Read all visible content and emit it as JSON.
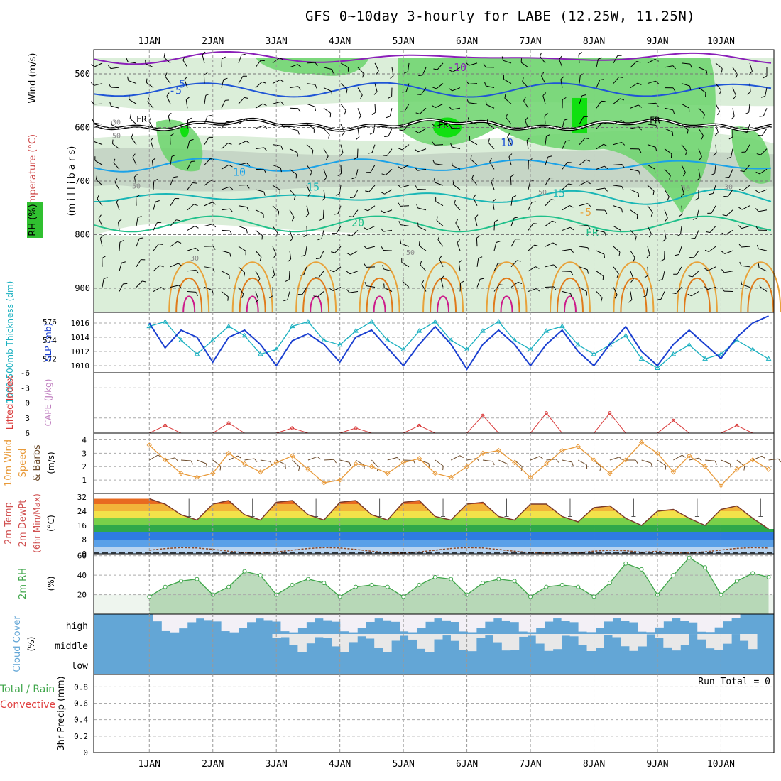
{
  "title": "GFS 0~10day 3-hourly for LABE (12.25W, 11.25N)",
  "days": [
    "1JAN",
    "2JAN",
    "3JAN",
    "4JAN",
    "5JAN",
    "6JAN",
    "7JAN",
    "8JAN",
    "9JAN",
    "10JAN"
  ],
  "colors": {
    "rh_light": "#dbeed9",
    "rh_mid": "#c6d6c6",
    "rh_green": "#6bd36b",
    "rh_bright": "#10e010",
    "temp_m10": "#8a1fb8",
    "temp_m5": "#1f55d6",
    "temp_5": "#1aa2e8",
    "temp_10": "#19b6b6",
    "temp_15": "#1fc08a",
    "temp_20": "#e8a23a",
    "temp_25": "#e07a1a",
    "temp_30": "#cc1a8a",
    "slp": "#1a3fd0",
    "thickness": "#1ab0c0",
    "li": "#d93b3b",
    "wind10": "#e89a3a",
    "rh2m": "#3fa64a",
    "cloud": "#63a6d6",
    "cloud_bg": "#e8e8e8",
    "cloud_high_bg": "#f3f0f6"
  },
  "panels": {
    "upper": {
      "ylabel_rh": "RH (%)",
      "ylabel_temp": "Temperature (°C)",
      "ylabel_wind": "Wind (m/s)",
      "ylabel_p": "(m i l l i b a r s)",
      "ticks": [
        "500",
        "600",
        "700",
        "800",
        "900"
      ],
      "contour_labels": [
        "-10",
        "-5",
        "5",
        "10",
        "15",
        "20",
        "-5",
        "10",
        "15",
        "FR",
        "FR",
        "FR"
      ],
      "rh_labels": [
        "30",
        "50",
        "50",
        "30",
        "50",
        "50",
        "30",
        "50"
      ]
    },
    "slp": {
      "ylabel_thick": "1000-500mb Thickness (dm)",
      "ylabel_slp": "SLP (mb)",
      "left_ticks": [
        "576",
        "574",
        "572"
      ],
      "right_ticks": [
        "1016",
        "1014",
        "1012",
        "1010"
      ]
    },
    "cape": {
      "ylabel_li": "Lifted Index",
      "ylabel_cape": "CAPE (J/kg)",
      "ticks": [
        "-6",
        "-3",
        "0",
        "3",
        "6"
      ]
    },
    "wind10m": {
      "ylabel_a": "10m Wind",
      "ylabel_b": "Speed",
      "ylabel_c": "& Barbs",
      "ylabel_unit": "(m/s)",
      "ticks": [
        "4",
        "3",
        "2",
        "1"
      ]
    },
    "temp2m": {
      "ylabel_a": "2m Temp",
      "ylabel_b": "2m DewPt",
      "ylabel_c": "(6hr Min/Max)",
      "ylabel_unit": "(°C)",
      "ticks": [
        "32",
        "24",
        "16",
        "8",
        "0"
      ]
    },
    "rh2m": {
      "ylabel": "2m RH",
      "ylabel_unit": "(%)",
      "ticks": [
        "60",
        "40",
        "20"
      ]
    },
    "cloud": {
      "ylabel": "Cloud Cover",
      "ylabel_unit": "(%)",
      "levels": [
        "high",
        "middle",
        "low"
      ]
    },
    "precip": {
      "ylabel_a": "Total / Rain",
      "ylabel_b": "Convective",
      "ylabel_c": "3hr Precip (mm)",
      "ticks": [
        "0.8",
        "0.6",
        "0.4",
        "0.2",
        "0"
      ],
      "run_total": "Run Total = 0"
    }
  },
  "chart_data": [
    {
      "type": "line",
      "title": "SLP (mb)",
      "x_hours": [
        0,
        6,
        12,
        18,
        24,
        30,
        36,
        42,
        48,
        54,
        60,
        66,
        72,
        78,
        84,
        90,
        96,
        102,
        108,
        114,
        120,
        126,
        132,
        138,
        144,
        150,
        156,
        162,
        168,
        174,
        180,
        186,
        192,
        198,
        204,
        210,
        216,
        222,
        228,
        234
      ],
      "values": [
        1016,
        1012.5,
        1015,
        1014,
        1010.5,
        1014,
        1015,
        1013,
        1010,
        1013.5,
        1014.5,
        1013,
        1010.5,
        1014,
        1015,
        1012.5,
        1010,
        1013,
        1015.5,
        1013,
        1009.5,
        1013,
        1015,
        1013,
        1010,
        1013,
        1015,
        1012,
        1010,
        1013,
        1015.5,
        1012,
        1010,
        1013,
        1015,
        1013,
        1011,
        1014,
        1016,
        1017
      ],
      "ylim": [
        1009,
        1017.5
      ]
    },
    {
      "type": "line",
      "title": "1000-500mb Thickness (dm)",
      "x_hours": [
        0,
        6,
        12,
        18,
        24,
        30,
        36,
        42,
        48,
        54,
        60,
        66,
        72,
        78,
        84,
        90,
        96,
        102,
        108,
        114,
        120,
        126,
        132,
        138,
        144,
        150,
        156,
        162,
        168,
        174,
        180,
        186,
        192,
        198,
        204,
        210,
        216,
        222,
        228,
        234
      ],
      "values": [
        575.5,
        576,
        574,
        572.5,
        574,
        575.5,
        574.5,
        572.5,
        573,
        575.5,
        576,
        574,
        573.5,
        575,
        576,
        574,
        573,
        575,
        576,
        574,
        573,
        575,
        576,
        574,
        573,
        575,
        575.5,
        573.5,
        572.5,
        573.5,
        574.5,
        572,
        571,
        572.5,
        573.5,
        572,
        572.5,
        574,
        573,
        572
      ],
      "ylim": [
        570.5,
        577
      ]
    },
    {
      "type": "line",
      "title": "Lifted Index",
      "x_hours": [
        0,
        6,
        12,
        18,
        24,
        30,
        36,
        42,
        48,
        54,
        60,
        66,
        72,
        78,
        84,
        90,
        96,
        102,
        108,
        114,
        120,
        126,
        132,
        138,
        144,
        150,
        156,
        162,
        168,
        174,
        180,
        186,
        192,
        198,
        204,
        210,
        216,
        222,
        228,
        234
      ],
      "values": [
        6,
        4.5,
        6,
        6,
        6,
        4,
        6,
        6,
        6,
        5,
        6,
        6,
        6,
        5,
        6,
        6,
        6,
        4.5,
        6,
        6,
        6,
        2.5,
        6,
        6,
        6,
        2,
        6,
        6,
        6,
        2,
        6,
        6,
        6,
        3.5,
        6,
        6,
        6,
        4.5,
        6,
        6
      ],
      "ylim": [
        -6,
        6
      ]
    },
    {
      "type": "line",
      "title": "10m Wind Speed (m/s)",
      "x_hours": [
        0,
        6,
        12,
        18,
        24,
        30,
        36,
        42,
        48,
        54,
        60,
        66,
        72,
        78,
        84,
        90,
        96,
        102,
        108,
        114,
        120,
        126,
        132,
        138,
        144,
        150,
        156,
        162,
        168,
        174,
        180,
        186,
        192,
        198,
        204,
        210,
        216,
        222,
        228,
        234
      ],
      "values": [
        3.6,
        2.5,
        1.5,
        1.2,
        1.5,
        3,
        2.2,
        1.6,
        2.3,
        2.8,
        1.8,
        0.8,
        1,
        2.2,
        2,
        1.5,
        2.3,
        2.6,
        1.5,
        1.2,
        2,
        3,
        3.2,
        2.3,
        1.2,
        2.2,
        3.2,
        3.5,
        2.5,
        1.5,
        2.5,
        3.8,
        3,
        1.6,
        2.8,
        2,
        0.6,
        1.8,
        2.5,
        1.8
      ],
      "ylim": [
        0,
        4.5
      ]
    },
    {
      "type": "area",
      "title": "2m Temp (°C)",
      "x_hours": [
        0,
        6,
        12,
        18,
        24,
        30,
        36,
        42,
        48,
        54,
        60,
        66,
        72,
        78,
        84,
        90,
        96,
        102,
        108,
        114,
        120,
        126,
        132,
        138,
        144,
        150,
        156,
        162,
        168,
        174,
        180,
        186,
        192,
        198,
        204,
        210,
        216,
        222,
        228,
        234
      ],
      "values": [
        31,
        28,
        22,
        19,
        28,
        30,
        22,
        19,
        29,
        30,
        22,
        19,
        29,
        30,
        22,
        19,
        29,
        30,
        21,
        19,
        28,
        29,
        21,
        19,
        28,
        28,
        21,
        18,
        26,
        27,
        20,
        16,
        24,
        25,
        20,
        16,
        25,
        27,
        20,
        14
      ],
      "ylim": [
        0,
        34
      ]
    },
    {
      "type": "area",
      "title": "2m RH (%)",
      "x_hours": [
        0,
        6,
        12,
        18,
        24,
        30,
        36,
        42,
        48,
        54,
        60,
        66,
        72,
        78,
        84,
        90,
        96,
        102,
        108,
        114,
        120,
        126,
        132,
        138,
        144,
        150,
        156,
        162,
        168,
        174,
        180,
        186,
        192,
        198,
        204,
        210,
        216,
        222,
        228,
        234
      ],
      "values": [
        18,
        28,
        34,
        36,
        20,
        28,
        44,
        40,
        20,
        30,
        36,
        32,
        18,
        28,
        30,
        28,
        18,
        30,
        38,
        36,
        20,
        32,
        36,
        34,
        18,
        28,
        30,
        28,
        18,
        32,
        52,
        46,
        20,
        40,
        58,
        48,
        20,
        34,
        42,
        38
      ],
      "ylim": [
        0,
        62
      ]
    }
  ]
}
